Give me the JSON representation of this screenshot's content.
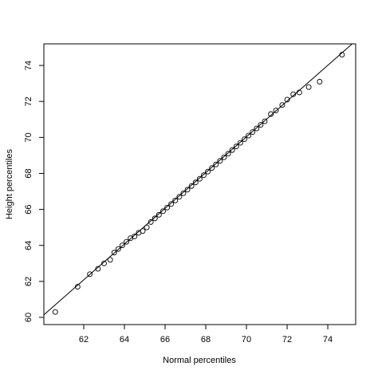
{
  "chart_data": {
    "type": "scatter",
    "xlabel": "Normal percentiles",
    "ylabel": "Height percentiles",
    "x": [
      60.6,
      61.7,
      62.3,
      62.7,
      63.0,
      63.3,
      63.5,
      63.7,
      63.9,
      64.1,
      64.3,
      64.5,
      64.7,
      64.9,
      65.1,
      65.3,
      65.5,
      65.7,
      65.9,
      66.1,
      66.3,
      66.5,
      66.7,
      66.9,
      67.1,
      67.3,
      67.5,
      67.7,
      67.9,
      68.1,
      68.3,
      68.5,
      68.7,
      68.9,
      69.1,
      69.3,
      69.5,
      69.7,
      69.9,
      70.1,
      70.3,
      70.5,
      70.7,
      70.9,
      71.2,
      71.45,
      71.76,
      72.0,
      72.3,
      72.6,
      73.06,
      73.6,
      74.7
    ],
    "y": [
      60.3,
      61.7,
      62.4,
      62.7,
      63.0,
      63.2,
      63.6,
      63.8,
      64.0,
      64.2,
      64.4,
      64.5,
      64.7,
      64.8,
      65.0,
      65.3,
      65.5,
      65.7,
      65.9,
      66.1,
      66.3,
      66.5,
      66.7,
      66.9,
      67.1,
      67.3,
      67.5,
      67.7,
      67.9,
      68.1,
      68.3,
      68.5,
      68.7,
      68.9,
      69.1,
      69.3,
      69.5,
      69.7,
      69.9,
      70.1,
      70.3,
      70.5,
      70.7,
      70.9,
      71.3,
      71.5,
      71.8,
      72.1,
      72.4,
      72.5,
      72.8,
      73.1,
      74.6
    ],
    "line": {
      "x": [
        60.0,
        75.4
      ],
      "y": [
        60.1,
        75.4
      ]
    },
    "color": "#000000",
    "xlim": [
      60.04,
      75.37
    ],
    "ylim": [
      59.6,
      75.2
    ],
    "xticks": [
      62,
      64,
      66,
      68,
      70,
      72,
      74
    ],
    "yticks": [
      60,
      62,
      64,
      66,
      68,
      70,
      72,
      74
    ]
  }
}
